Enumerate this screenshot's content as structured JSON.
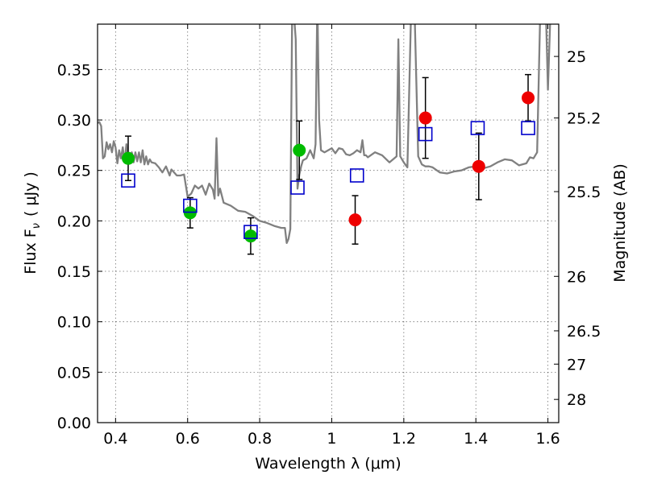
{
  "chart_data": {
    "type": "scatter",
    "xlabel": "Wavelength  λ (μm)",
    "ylabel": "Flux  F",
    "ylabel_sub": "ν",
    "ylabel_unit": "( μJy )",
    "y2label": "Magnitude (AB)",
    "xlim": [
      0.35,
      1.63
    ],
    "ylim": [
      0.0,
      0.395
    ],
    "x_ticks": [
      0.4,
      0.6,
      0.8,
      1.0,
      1.2,
      1.4,
      1.6
    ],
    "x_tick_labels": [
      "0.4",
      "0.6",
      "0.8",
      "1",
      "1.2",
      "1.4",
      "1.6"
    ],
    "y_ticks": [
      0.0,
      0.05,
      0.1,
      0.15,
      0.2,
      0.25,
      0.3,
      0.35
    ],
    "y_tick_labels": [
      "0.00",
      "0.05",
      "0.10",
      "0.15",
      "0.20",
      "0.25",
      "0.30",
      "0.35"
    ],
    "y2_ticks": [
      {
        "label": "25",
        "flux": 0.363
      },
      {
        "label": "25.2",
        "flux": 0.302
      },
      {
        "label": "25.5",
        "flux": 0.229
      },
      {
        "label": "26",
        "flux": 0.145
      },
      {
        "label": "26.5",
        "flux": 0.091
      },
      {
        "label": "27",
        "flux": 0.058
      },
      {
        "label": "28",
        "flux": 0.023
      }
    ],
    "grid": true,
    "colors": {
      "model": "#808080",
      "detection": "#00bb00",
      "measured": "#ee0000",
      "model_points": "#0000cc",
      "errorbar": "#000000"
    },
    "model_spectrum": {
      "x": [
        0.35,
        0.355,
        0.36,
        0.365,
        0.37,
        0.375,
        0.38,
        0.385,
        0.39,
        0.395,
        0.4,
        0.405,
        0.41,
        0.415,
        0.42,
        0.425,
        0.43,
        0.435,
        0.44,
        0.445,
        0.45,
        0.455,
        0.46,
        0.465,
        0.47,
        0.475,
        0.48,
        0.485,
        0.49,
        0.495,
        0.5,
        0.51,
        0.52,
        0.53,
        0.54,
        0.55,
        0.555,
        0.56,
        0.565,
        0.57,
        0.58,
        0.59,
        0.6,
        0.61,
        0.62,
        0.63,
        0.64,
        0.65,
        0.66,
        0.67,
        0.675,
        0.68,
        0.685,
        0.69,
        0.7,
        0.72,
        0.74,
        0.76,
        0.78,
        0.8,
        0.82,
        0.84,
        0.86,
        0.87,
        0.875,
        0.88,
        0.885,
        0.89,
        0.893,
        0.896,
        0.9,
        0.905,
        0.91,
        0.915,
        0.92,
        0.93,
        0.94,
        0.95,
        0.955,
        0.96,
        0.965,
        0.97,
        0.98,
        1.0,
        1.01,
        1.02,
        1.03,
        1.04,
        1.05,
        1.06,
        1.07,
        1.08,
        1.085,
        1.09,
        1.095,
        1.1,
        1.12,
        1.14,
        1.16,
        1.18,
        1.185,
        1.19,
        1.2,
        1.21,
        1.22,
        1.225,
        1.23,
        1.24,
        1.25,
        1.26,
        1.27,
        1.28,
        1.3,
        1.32,
        1.34,
        1.36,
        1.38,
        1.4,
        1.42,
        1.44,
        1.46,
        1.48,
        1.5,
        1.52,
        1.54,
        1.55,
        1.56,
        1.57,
        1.58,
        1.59,
        1.6,
        1.61,
        1.62,
        1.63
      ],
      "y": [
        0.297,
        0.298,
        0.294,
        0.262,
        0.264,
        0.278,
        0.271,
        0.276,
        0.268,
        0.279,
        0.273,
        0.257,
        0.27,
        0.262,
        0.273,
        0.258,
        0.276,
        0.262,
        0.262,
        0.268,
        0.258,
        0.268,
        0.259,
        0.268,
        0.258,
        0.27,
        0.256,
        0.264,
        0.256,
        0.261,
        0.258,
        0.257,
        0.253,
        0.248,
        0.254,
        0.245,
        0.251,
        0.249,
        0.247,
        0.245,
        0.245,
        0.246,
        0.224,
        0.227,
        0.235,
        0.232,
        0.235,
        0.226,
        0.237,
        0.231,
        0.222,
        0.282,
        0.225,
        0.232,
        0.218,
        0.215,
        0.21,
        0.209,
        0.205,
        0.2,
        0.198,
        0.195,
        0.193,
        0.193,
        0.178,
        0.182,
        0.192,
        0.4,
        0.46,
        0.4,
        0.38,
        0.232,
        0.246,
        0.254,
        0.26,
        0.262,
        0.27,
        0.262,
        0.276,
        0.42,
        0.3,
        0.27,
        0.268,
        0.272,
        0.267,
        0.272,
        0.271,
        0.266,
        0.265,
        0.267,
        0.27,
        0.268,
        0.28,
        0.265,
        0.265,
        0.263,
        0.268,
        0.265,
        0.258,
        0.264,
        0.38,
        0.264,
        0.258,
        0.253,
        0.405,
        0.45,
        0.405,
        0.264,
        0.256,
        0.254,
        0.254,
        0.253,
        0.248,
        0.247,
        0.249,
        0.25,
        0.253,
        0.254,
        0.252,
        0.254,
        0.258,
        0.261,
        0.26,
        0.255,
        0.257,
        0.263,
        0.262,
        0.268,
        0.43,
        0.47,
        0.33,
        0.44,
        0.47,
        0.47
      ]
    },
    "series": [
      {
        "marker": "circle",
        "color": "#00bb00",
        "points": [
          {
            "x": 0.435,
            "y": 0.262,
            "err": 0.022
          },
          {
            "x": 0.607,
            "y": 0.208,
            "err": 0.015
          },
          {
            "x": 0.775,
            "y": 0.185,
            "err": 0.018
          },
          {
            "x": 0.91,
            "y": 0.27,
            "err": 0.029
          }
        ]
      },
      {
        "marker": "circle",
        "color": "#ee0000",
        "points": [
          {
            "x": 1.065,
            "y": 0.201,
            "err": 0.024
          },
          {
            "x": 1.26,
            "y": 0.302,
            "err": 0.04
          },
          {
            "x": 1.408,
            "y": 0.254,
            "err": 0.033
          },
          {
            "x": 1.545,
            "y": 0.322,
            "err": 0.023
          }
        ]
      },
      {
        "marker": "square",
        "color": "#0000cc",
        "points": [
          {
            "x": 0.435,
            "y": 0.24
          },
          {
            "x": 0.607,
            "y": 0.215
          },
          {
            "x": 0.775,
            "y": 0.189
          },
          {
            "x": 0.905,
            "y": 0.233
          },
          {
            "x": 1.07,
            "y": 0.245
          },
          {
            "x": 1.26,
            "y": 0.286
          },
          {
            "x": 1.405,
            "y": 0.292
          },
          {
            "x": 1.545,
            "y": 0.292
          }
        ]
      }
    ]
  }
}
